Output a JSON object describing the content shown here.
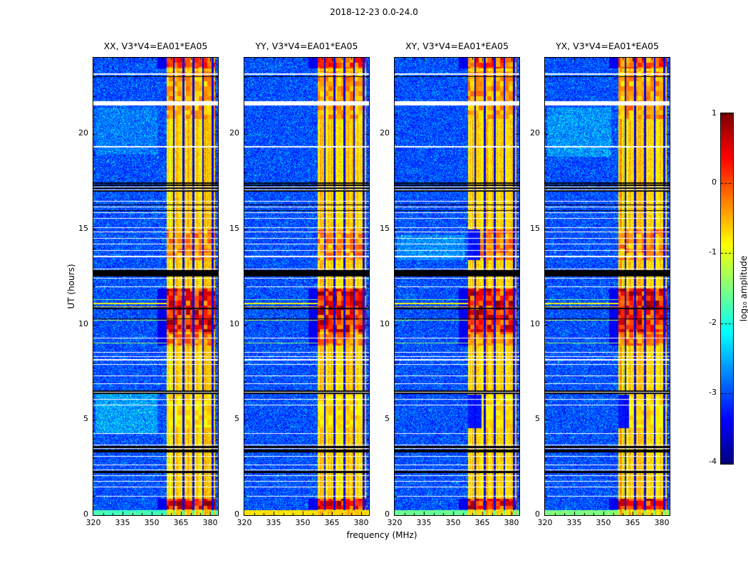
{
  "chart_data": {
    "type": "heatmap",
    "title": "2018-12-23 0.0-24.0",
    "panels": [
      {
        "title": "XX, V3*V4=EA01*EA05",
        "seed": 11
      },
      {
        "title": "YY, V3*V4=EA01*EA05",
        "seed": 23
      },
      {
        "title": "XY, V3*V4=EA01*EA05",
        "seed": 37
      },
      {
        "title": "YX, V3*V4=EA01*EA05",
        "seed": 53
      }
    ],
    "x_axis": {
      "label": "frequency (MHz)",
      "range": [
        320,
        384
      ],
      "major_ticks": [
        320,
        335,
        350,
        365,
        380
      ],
      "minor_step": 5
    },
    "y_axis": {
      "label": "UT (hours)",
      "range": [
        0,
        24
      ],
      "major_ticks": [
        0,
        5,
        10,
        15,
        20
      ],
      "minor_step": 1
    },
    "colorbar": {
      "label": "log₁₀ amplitude",
      "range": [
        -4,
        1
      ],
      "ticks": [
        1,
        0,
        -1,
        -2,
        -3,
        -4
      ],
      "colormap": "jet"
    },
    "features": {
      "background_level": [
        -3.3,
        -2.35
      ],
      "speckle_chance": 0.02,
      "speckle_boost": 1.1,
      "emission_band": {
        "freq": [
          357.5,
          382.5
        ],
        "level": [
          -1.05,
          -0.5
        ]
      },
      "notches_mhz": [
        361.4,
        366.3,
        371.3,
        376.3,
        381.3
      ],
      "hot_bands_ut": [
        [
          0.3,
          0.85,
          1.0
        ],
        [
          4.6,
          6.3,
          0.3
        ],
        [
          8.9,
          9.6,
          0.6
        ],
        [
          9.6,
          11.9,
          1.0
        ],
        [
          13.4,
          15.0,
          0.55
        ],
        [
          20.8,
          23.3,
          0.5
        ],
        [
          23.45,
          24.0,
          0.75
        ]
      ],
      "black_bands_ut": [
        [
          2.2,
          2.32
        ],
        [
          3.3,
          3.44
        ],
        [
          3.52,
          3.62
        ],
        [
          6.36,
          6.44
        ],
        [
          6.48,
          6.55
        ],
        [
          10.28,
          10.32
        ],
        [
          10.82,
          10.86
        ],
        [
          12.52,
          12.85
        ],
        [
          15.95,
          15.99
        ],
        [
          16.25,
          16.29
        ],
        [
          16.98,
          17.06
        ],
        [
          17.12,
          17.2
        ],
        [
          17.26,
          17.34
        ],
        [
          17.4,
          17.44
        ],
        [
          22.98,
          23.02
        ]
      ],
      "white_bands_ut": [
        [
          0.97,
          1.01
        ],
        [
          1.47,
          1.51
        ],
        [
          1.77,
          1.81
        ],
        [
          2.05,
          2.09
        ],
        [
          2.36,
          2.4
        ],
        [
          2.62,
          2.66
        ],
        [
          3.08,
          3.12
        ],
        [
          3.47,
          3.5
        ],
        [
          3.66,
          3.7
        ],
        [
          4.28,
          4.31
        ],
        [
          5.76,
          5.8
        ],
        [
          6.04,
          6.08
        ],
        [
          6.44,
          6.48
        ],
        [
          6.88,
          6.92
        ],
        [
          7.3,
          7.34
        ],
        [
          7.9,
          7.94
        ],
        [
          8.12,
          8.17
        ],
        [
          8.3,
          8.34
        ],
        [
          8.52,
          8.57
        ],
        [
          9.28,
          9.31
        ],
        [
          11.95,
          11.99
        ],
        [
          12.42,
          12.46
        ],
        [
          12.88,
          12.92
        ],
        [
          13.55,
          13.59
        ],
        [
          13.87,
          13.91
        ],
        [
          14.2,
          14.24
        ],
        [
          14.52,
          14.56
        ],
        [
          14.84,
          14.88
        ],
        [
          15.08,
          15.12
        ],
        [
          15.55,
          15.6
        ],
        [
          15.85,
          15.9
        ],
        [
          16.15,
          16.2
        ],
        [
          16.45,
          16.5
        ],
        [
          17.06,
          17.09
        ],
        [
          17.2,
          17.23
        ],
        [
          19.3,
          19.36
        ],
        [
          21.5,
          21.72
        ],
        [
          23.1,
          23.18
        ]
      ],
      "bright_rows_ut": [
        [
          9.0,
          9.05,
          -1.4
        ],
        [
          10.2,
          10.25,
          -1.2
        ],
        [
          10.9,
          10.95,
          -0.6
        ],
        [
          11.08,
          11.14,
          -0.9
        ],
        [
          11.3,
          11.34,
          -1.5
        ]
      ],
      "bottom_stripe": {
        "ut": [
          0.0,
          0.28
        ],
        "panel_levels": [
          -1.8,
          -0.75,
          -1.6,
          -1.5
        ]
      },
      "haze_patches": [
        {
          "panel": 0,
          "ut": [
            4.3,
            6.5
          ],
          "freq": [
            321,
            353
          ],
          "boost": 0.6
        },
        {
          "panel": 0,
          "ut": [
            18.9,
            21.4
          ],
          "freq": [
            321,
            353
          ],
          "boost": 0.3
        },
        {
          "panel": 2,
          "ut": [
            13.4,
            14.7
          ],
          "freq": [
            321,
            356
          ],
          "boost": 0.45
        },
        {
          "panel": 3,
          "ut": [
            18.8,
            21.4
          ],
          "freq": [
            321,
            354
          ],
          "boost": 0.5
        }
      ],
      "band_gaps": [
        {
          "panel": 2,
          "ut": [
            4.55,
            6.3
          ],
          "freq": [
            356,
            364.5
          ]
        },
        {
          "panel": 2,
          "ut": [
            13.4,
            15.0
          ],
          "freq": [
            356,
            364.0
          ]
        },
        {
          "panel": 3,
          "ut": [
            4.55,
            6.3
          ],
          "freq": [
            356,
            363.0
          ]
        }
      ]
    }
  }
}
